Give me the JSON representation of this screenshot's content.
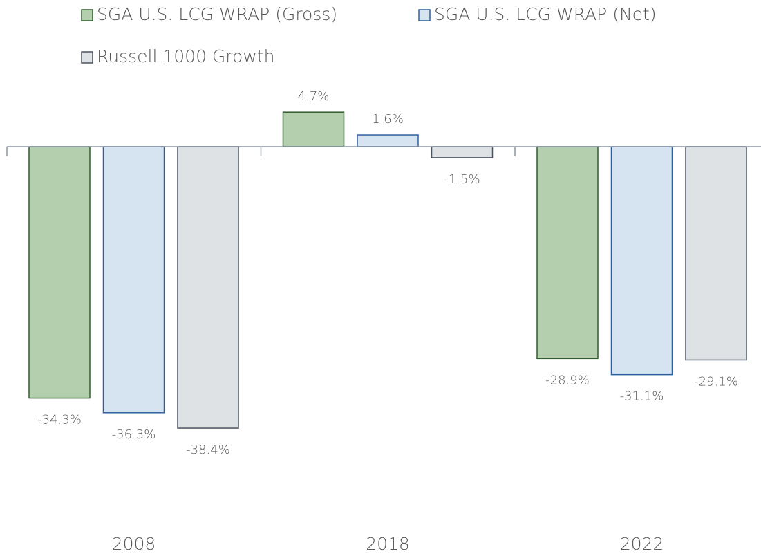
{
  "chart_data": {
    "type": "bar",
    "categories": [
      "2008",
      "2018",
      "2022"
    ],
    "series": [
      {
        "name": "SGA U.S. LCG WRAP  (Gross)",
        "color": "#b3cfae",
        "stroke": "#2f5f2a",
        "values": [
          -34.3,
          4.7,
          -28.9
        ],
        "value_labels": [
          "-34.3%",
          "4.7%",
          "-28.9%"
        ]
      },
      {
        "name": "SGA U.S. LCG WRAP (Net)",
        "color": "#d6e4f2",
        "stroke": "#2e5fa0",
        "values": [
          -36.3,
          1.6,
          -31.1
        ],
        "value_labels": [
          "-36.3%",
          "1.6%",
          "-31.1%"
        ]
      },
      {
        "name": "Russell 1000 Growth",
        "color": "#dfe2e5",
        "stroke": "#4a5360",
        "values": [
          -38.4,
          -1.5,
          -29.1
        ],
        "value_labels": [
          "-38.4%",
          "-1.5%",
          "-29.1%"
        ]
      }
    ]
  }
}
